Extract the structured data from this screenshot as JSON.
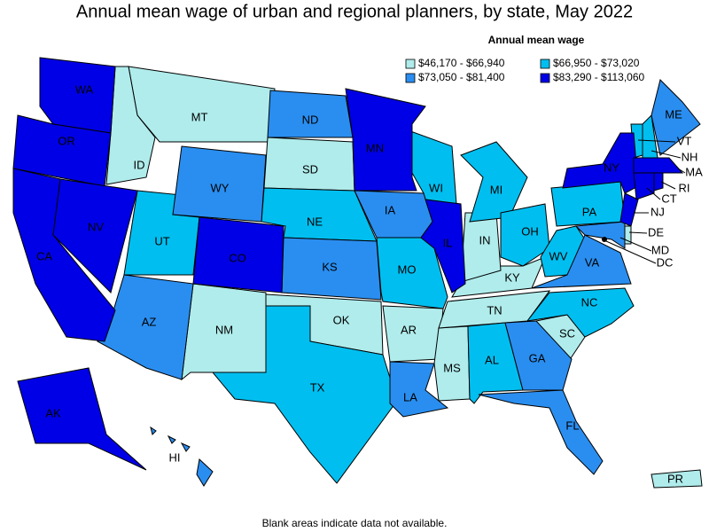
{
  "title": "Annual mean wage of urban and regional planners, by state, May 2022",
  "legend": {
    "title": "Annual mean wage",
    "bins": [
      {
        "label": "$46,170 - $66,940",
        "color": "#b0ecec",
        "states": [
          "MT",
          "ID",
          "SD",
          "NM",
          "OK",
          "AR",
          "MS",
          "KY",
          "IN",
          "TN",
          "SC",
          "DE",
          "PR"
        ]
      },
      {
        "label": "$66,950 - $73,020",
        "color": "#00bff0",
        "states": [
          "UT",
          "NE",
          "TX",
          "MO",
          "WI",
          "MI",
          "OH",
          "WV",
          "PA",
          "NC",
          "AL",
          "VT",
          "NH"
        ]
      },
      {
        "label": "$73,050 - $81,400",
        "color": "#2a8ef0",
        "states": [
          "ND",
          "WY",
          "IA",
          "KS",
          "AZ",
          "LA",
          "GA",
          "FL",
          "VA",
          "MD",
          "ME",
          "HI"
        ]
      },
      {
        "label": "$83,290 - $113,060",
        "color": "#0000e6",
        "states": [
          "WA",
          "OR",
          "CA",
          "NV",
          "CO",
          "MN",
          "IL",
          "NY",
          "NJ",
          "MA",
          "CT",
          "RI",
          "AK",
          "DC"
        ]
      }
    ]
  },
  "note": "Blank areas indicate data not available."
}
